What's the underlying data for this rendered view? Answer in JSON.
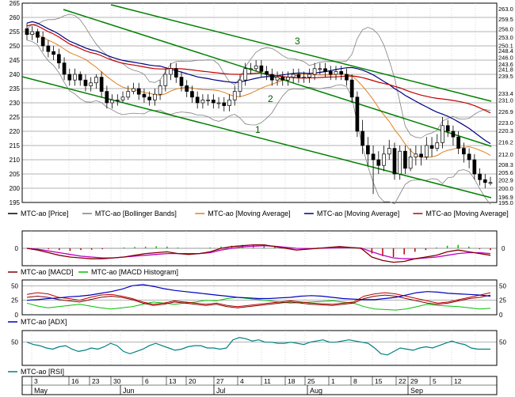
{
  "chart_data": [
    {
      "type": "candlestick",
      "panel": "price",
      "title": "",
      "ylim": [
        195,
        265
      ],
      "yticks": [
        195,
        200,
        205,
        210,
        215,
        220,
        225,
        230,
        235,
        240,
        245,
        250,
        255,
        260,
        265
      ],
      "right_value_labels": [
        "263.0",
        "259.5",
        "256.0",
        "253.0",
        "250.1",
        "248.4",
        "246.0",
        "243.6",
        "241.8",
        "239.5",
        "233.4",
        "231.0",
        "226.9",
        "223.0",
        "220.3",
        "216.2",
        "212.0",
        "208.3",
        "205.6",
        "202.9",
        "200.0",
        "196.9",
        "195.0"
      ],
      "annotations": [
        "1",
        "2",
        "3"
      ],
      "legend": [
        "MTC-ao [Price]",
        "MTC-ao [Bollinger Bands]",
        "MTC-ao [Moving Average]",
        "MTC-ao [Moving Average]",
        "MTC-ao [Moving Average]"
      ],
      "series_colors": {
        "price": "#000000",
        "bollinger": "#808080",
        "ma_short": "#e08020",
        "ma_mid": "#000080",
        "ma_long": "#c00000",
        "trendline": "#008000"
      },
      "close": [
        254,
        255,
        253,
        250,
        248,
        247,
        244,
        240,
        238,
        240,
        238,
        236,
        237,
        239,
        234,
        230,
        231,
        231,
        232,
        234,
        235,
        233,
        232,
        231,
        233,
        236,
        240,
        242,
        239,
        236,
        234,
        232,
        230,
        231,
        231,
        230,
        230,
        229,
        231,
        234,
        238,
        242,
        242,
        243,
        241,
        240,
        238,
        239,
        238,
        239,
        240,
        239,
        239,
        240,
        242,
        242,
        241,
        240,
        241,
        240,
        238,
        232,
        220,
        215,
        212,
        210,
        208,
        212,
        214,
        205,
        213,
        207,
        211,
        212,
        211,
        215,
        214,
        216,
        222,
        220,
        218,
        214,
        212,
        210,
        205,
        203,
        202,
        202
      ],
      "open": [
        256,
        254,
        255,
        253,
        250,
        248,
        247,
        244,
        240,
        238,
        240,
        238,
        236,
        237,
        239,
        234,
        230,
        231,
        231,
        232,
        234,
        235,
        233,
        232,
        231,
        233,
        236,
        240,
        242,
        239,
        236,
        234,
        232,
        230,
        231,
        231,
        230,
        230,
        229,
        231,
        234,
        238,
        242,
        242,
        243,
        241,
        240,
        238,
        239,
        238,
        239,
        240,
        239,
        239,
        240,
        242,
        242,
        241,
        240,
        241,
        240,
        238,
        232,
        220,
        215,
        212,
        210,
        208,
        212,
        214,
        205,
        213,
        207,
        211,
        212,
        211,
        215,
        214,
        216,
        222,
        220,
        218,
        214,
        212,
        210,
        205,
        203,
        202
      ],
      "high": [
        258,
        257,
        256,
        255,
        252,
        250,
        249,
        246,
        242,
        242,
        241,
        240,
        239,
        240,
        241,
        236,
        233,
        233,
        234,
        236,
        237,
        237,
        235,
        234,
        235,
        238,
        242,
        244,
        244,
        241,
        238,
        236,
        234,
        233,
        233,
        233,
        232,
        232,
        233,
        236,
        240,
        244,
        244,
        245,
        245,
        243,
        242,
        241,
        241,
        241,
        242,
        242,
        241,
        242,
        244,
        244,
        244,
        243,
        243,
        243,
        242,
        240,
        234,
        224,
        218,
        215,
        213,
        215,
        217,
        216,
        215,
        215,
        214,
        215,
        215,
        218,
        218,
        219,
        225,
        224,
        222,
        220,
        216,
        214,
        212,
        207,
        205,
        204
      ],
      "low": [
        252,
        252,
        251,
        248,
        246,
        245,
        242,
        238,
        236,
        236,
        236,
        234,
        234,
        235,
        232,
        228,
        228,
        229,
        230,
        231,
        233,
        231,
        230,
        229,
        229,
        231,
        234,
        238,
        237,
        234,
        232,
        230,
        228,
        228,
        229,
        228,
        228,
        227,
        227,
        229,
        232,
        236,
        240,
        241,
        239,
        238,
        236,
        236,
        236,
        236,
        237,
        237,
        237,
        237,
        238,
        240,
        239,
        238,
        238,
        238,
        236,
        230,
        218,
        212,
        208,
        198,
        205,
        206,
        210,
        203,
        203,
        205,
        206,
        208,
        208,
        210,
        211,
        213,
        214,
        218,
        215,
        212,
        209,
        207,
        203,
        201,
        200,
        201
      ]
    },
    {
      "type": "line",
      "panel": "macd",
      "ylim": [
        -1,
        1
      ],
      "yticks": [
        0
      ],
      "right_tick_labels": [
        "0"
      ],
      "legend": [
        "MTC-ao [MACD]",
        "MTC-ao [MACD Histogram]"
      ],
      "series_colors": {
        "macd": "#800000",
        "signal": "#c000c0",
        "histogram_positive": "#00c000",
        "histogram_negative": "#c00000"
      },
      "macd": [
        0,
        -0.1,
        -0.25,
        -0.4,
        -0.5,
        -0.55,
        -0.6,
        -0.6,
        -0.55,
        -0.5,
        -0.4,
        -0.3,
        -0.25,
        -0.2,
        -0.3,
        -0.35,
        -0.3,
        -0.2,
        0,
        0.1,
        0.15,
        0.2,
        0.2,
        0.1,
        0,
        -0.1,
        -0.05,
        0,
        0.05,
        0.1,
        0.05,
        0,
        -0.5,
        -0.7,
        -0.8,
        -0.75,
        -0.6,
        -0.5,
        -0.4,
        -0.2,
        -0.1,
        -0.2,
        -0.3,
        -0.4
      ],
      "signal": [
        0,
        -0.05,
        -0.15,
        -0.25,
        -0.35,
        -0.45,
        -0.5,
        -0.55,
        -0.55,
        -0.5,
        -0.45,
        -0.4,
        -0.35,
        -0.3,
        -0.3,
        -0.3,
        -0.3,
        -0.25,
        -0.1,
        0,
        0.08,
        0.12,
        0.15,
        0.12,
        0.06,
        0,
        -0.02,
        0,
        0.02,
        0.04,
        0.04,
        0.02,
        -0.2,
        -0.4,
        -0.55,
        -0.6,
        -0.6,
        -0.55,
        -0.5,
        -0.4,
        -0.3,
        -0.25,
        -0.25,
        -0.3
      ],
      "histogram": [
        0,
        0.02,
        -0.05,
        -0.1,
        -0.15,
        -0.1,
        -0.08,
        -0.05,
        0.02,
        0.05,
        0.08,
        0.1,
        0.12,
        0.1,
        0.05,
        0,
        0.02,
        0.05,
        0.1,
        0.15,
        0.2,
        0.2,
        0.15,
        0.1,
        0.05,
        0,
        0.03,
        0.05,
        0.06,
        0.05,
        0.02,
        -0.05,
        -0.3,
        -0.45,
        -0.5,
        -0.35,
        -0.2,
        -0.1,
        0.05,
        0.15,
        0.2,
        0.1,
        -0.05,
        -0.1
      ]
    },
    {
      "type": "line",
      "panel": "adx",
      "ylim": [
        0,
        60
      ],
      "yticks": [
        0,
        25,
        50
      ],
      "right_tick_labels": [
        "0",
        "25",
        "50"
      ],
      "legend": [
        "MTC-ao [ADX]"
      ],
      "series_colors": {
        "adx": "#0000c0",
        "plus_di": "#00c000",
        "minus_di": "#c00000",
        "third": "#800000"
      },
      "adx": [
        25,
        26,
        28,
        29,
        31,
        32,
        34,
        37,
        40,
        44,
        50,
        52,
        49,
        45,
        42,
        40,
        38,
        36,
        34,
        32,
        30,
        29,
        28,
        28,
        29,
        30,
        32,
        33,
        32,
        30,
        28,
        27,
        26,
        26,
        28,
        30,
        34,
        38,
        40,
        39,
        37,
        36,
        35,
        34,
        32
      ],
      "plus_di": [
        20,
        15,
        12,
        14,
        16,
        18,
        15,
        12,
        10,
        12,
        14,
        18,
        22,
        20,
        18,
        20,
        22,
        25,
        24,
        28,
        30,
        28,
        26,
        24,
        22,
        20,
        21,
        22,
        23,
        24,
        22,
        20,
        14,
        10,
        9,
        8,
        10,
        14,
        18,
        16,
        15,
        14,
        12,
        10,
        11
      ],
      "minus_di": [
        35,
        38,
        36,
        30,
        28,
        25,
        30,
        34,
        35,
        32,
        28,
        22,
        18,
        20,
        24,
        22,
        20,
        18,
        20,
        16,
        14,
        16,
        18,
        20,
        22,
        24,
        22,
        20,
        19,
        18,
        20,
        22,
        32,
        36,
        38,
        36,
        32,
        28,
        24,
        20,
        22,
        26,
        30,
        34,
        38
      ],
      "third": [
        30,
        32,
        30,
        26,
        24,
        22,
        26,
        30,
        32,
        30,
        26,
        20,
        16,
        18,
        22,
        20,
        18,
        16,
        18,
        14,
        12,
        14,
        16,
        18,
        20,
        22,
        20,
        18,
        17,
        16,
        18,
        20,
        28,
        32,
        34,
        32,
        28,
        24,
        20,
        18,
        20,
        24,
        28,
        30,
        34
      ]
    },
    {
      "type": "line",
      "panel": "rsi",
      "ylim": [
        10,
        70
      ],
      "yticks": [
        50
      ],
      "right_tick_labels": [
        "50"
      ],
      "legend": [
        "MTC-ao [RSI]"
      ],
      "series_colors": {
        "rsi": "#008080"
      },
      "rsi": [
        50,
        46,
        44,
        40,
        38,
        42,
        44,
        38,
        34,
        36,
        40,
        38,
        42,
        48,
        44,
        34,
        30,
        34,
        38,
        44,
        48,
        44,
        40,
        36,
        38,
        42,
        44,
        44,
        40,
        40,
        38,
        40,
        54,
        58,
        56,
        52,
        54,
        50,
        50,
        48,
        48,
        50,
        48,
        46,
        50,
        52,
        54,
        50,
        50,
        52,
        54,
        52,
        50,
        48,
        40,
        30,
        28,
        34,
        40,
        38,
        36,
        40,
        42,
        40,
        44,
        48,
        52,
        48,
        46,
        40,
        38,
        38,
        38
      ]
    },
    {
      "type": "axis",
      "panel": "date_axis",
      "day_labels": [
        "3",
        "16",
        "23",
        "30",
        "6",
        "13",
        "20",
        "27",
        "4",
        "11",
        "18",
        "25",
        "1",
        "8",
        "15",
        "22",
        "29",
        "5",
        "12"
      ],
      "month_labels": [
        "May",
        "Jun",
        "Jul",
        "Aug",
        "Sep"
      ]
    }
  ]
}
